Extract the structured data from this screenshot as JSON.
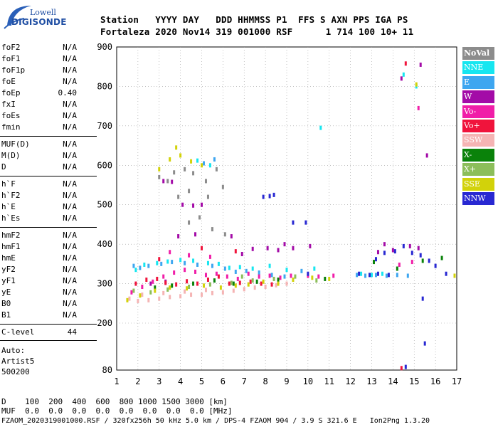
{
  "logo": {
    "line1": "Lowell",
    "line2": "DIGISONDE"
  },
  "header": {
    "row1": "Station   YYYY DAY   DDD HHMMSS P1  FFS S AXN PPS IGA PS",
    "row2": "Fortaleza 2020 Nov14 319 001000 RSF      1 714 100 10+ 11"
  },
  "params_group1": [
    {
      "name": "foF2",
      "value": "N/A"
    },
    {
      "name": "foF1",
      "value": "N/A"
    },
    {
      "name": "foF1p",
      "value": "N/A"
    },
    {
      "name": "foE",
      "value": "N/A"
    },
    {
      "name": "foEp",
      "value": "0.40"
    },
    {
      "name": "fxI",
      "value": "N/A"
    },
    {
      "name": "foEs",
      "value": "N/A"
    },
    {
      "name": "fmin",
      "value": "N/A"
    }
  ],
  "params_group2": [
    {
      "name": "MUF(D)",
      "value": "N/A"
    },
    {
      "name": "M(D)",
      "value": "N/A"
    },
    {
      "name": "D",
      "value": "N/A"
    }
  ],
  "params_group3": [
    {
      "name": "h`F",
      "value": "N/A"
    },
    {
      "name": "h`F2",
      "value": "N/A"
    },
    {
      "name": "h`E",
      "value": "N/A"
    },
    {
      "name": "h`Es",
      "value": "N/A"
    }
  ],
  "params_group4": [
    {
      "name": "hmF2",
      "value": "N/A"
    },
    {
      "name": "hmF1",
      "value": "N/A"
    },
    {
      "name": "hmE",
      "value": "N/A"
    },
    {
      "name": "yF2",
      "value": "N/A"
    },
    {
      "name": "yF1",
      "value": "N/A"
    },
    {
      "name": "yE",
      "value": "N/A"
    },
    {
      "name": "B0",
      "value": "N/A"
    },
    {
      "name": "B1",
      "value": "N/A"
    }
  ],
  "clevel": {
    "name": "C-level",
    "value": "44"
  },
  "auto": {
    "line1": "Auto:",
    "line2": "Artist5",
    "line3": "500200"
  },
  "legend": [
    {
      "label": "NoVal",
      "color": "#8c8c8c"
    },
    {
      "label": "NNE",
      "color": "#17e6f0"
    },
    {
      "label": "E",
      "color": "#3ea6f0"
    },
    {
      "label": "W",
      "color": "#a30ba7"
    },
    {
      "label": "Vo-",
      "color": "#f01ea8"
    },
    {
      "label": "Vo+",
      "color": "#f0143c"
    },
    {
      "label": "SSW",
      "color": "#f5b4b4"
    },
    {
      "label": "X-",
      "color": "#0a820a"
    },
    {
      "label": "X+",
      "color": "#8cbe5a"
    },
    {
      "label": "SSE",
      "color": "#d2d20a"
    },
    {
      "label": "NNW",
      "color": "#2828d2"
    }
  ],
  "chart_data": {
    "type": "scatter",
    "title": "",
    "xlabel": "",
    "ylabel": "",
    "xlim": [
      1,
      17
    ],
    "ylim": [
      80,
      900
    ],
    "xticks": [
      "1",
      "2",
      "3",
      "4",
      "5",
      "6",
      "7",
      "8",
      "9",
      "10",
      "11",
      "12",
      "13",
      "14",
      "15",
      "16",
      "17"
    ],
    "yticks": [
      {
        "label": "900",
        "value": 900
      },
      {
        "label": "800",
        "value": 800
      },
      {
        "label": "700",
        "value": 700
      },
      {
        "label": "600",
        "value": 600
      },
      {
        "label": "500",
        "value": 500
      },
      {
        "label": "400",
        "value": 400
      },
      {
        "label": "300",
        "value": 300
      },
      {
        "label": "200",
        "value": 200
      },
      {
        "label": "80",
        "value": 80
      }
    ],
    "grid": "dotted",
    "legend_position": "right",
    "series": [
      {
        "name": "NNE",
        "color": "#17e6f0",
        "points": [
          [
            1.9,
            335
          ],
          [
            2.3,
            348
          ],
          [
            2.9,
            352
          ],
          [
            3.4,
            356
          ],
          [
            4.0,
            360
          ],
          [
            4.6,
            358
          ],
          [
            5.3,
            352
          ],
          [
            5.8,
            350
          ],
          [
            6.3,
            340
          ],
          [
            6.8,
            342
          ],
          [
            7.4,
            338
          ],
          [
            8.2,
            345
          ],
          [
            9.0,
            335
          ],
          [
            10.3,
            338
          ],
          [
            12.5,
            325
          ],
          [
            13.0,
            322
          ],
          [
            13.5,
            325
          ],
          [
            10.6,
            695
          ],
          [
            14.5,
            830
          ],
          [
            15.1,
            800
          ],
          [
            4.8,
            612
          ],
          [
            5.4,
            600
          ]
        ]
      },
      {
        "name": "E",
        "color": "#3ea6f0",
        "points": [
          [
            1.8,
            345
          ],
          [
            2.1,
            340
          ],
          [
            2.5,
            345
          ],
          [
            3.1,
            350
          ],
          [
            3.6,
            355
          ],
          [
            4.2,
            352
          ],
          [
            4.8,
            348
          ],
          [
            5.5,
            345
          ],
          [
            6.1,
            338
          ],
          [
            6.6,
            330
          ],
          [
            7.1,
            332
          ],
          [
            7.7,
            328
          ],
          [
            8.3,
            322
          ],
          [
            8.9,
            318
          ],
          [
            12.3,
            322
          ],
          [
            12.7,
            320
          ],
          [
            13.2,
            322
          ],
          [
            13.7,
            320
          ],
          [
            14.2,
            322
          ],
          [
            14.7,
            320
          ],
          [
            5.1,
            605
          ],
          [
            5.6,
            615
          ],
          [
            9.7,
            332
          ]
        ]
      },
      {
        "name": "W",
        "color": "#a30ba7",
        "points": [
          [
            3.2,
            560
          ],
          [
            3.6,
            558
          ],
          [
            4.1,
            500
          ],
          [
            4.6,
            498
          ],
          [
            5.0,
            500
          ],
          [
            3.9,
            420
          ],
          [
            4.7,
            425
          ],
          [
            6.4,
            420
          ],
          [
            7.4,
            388
          ],
          [
            8.1,
            390
          ],
          [
            8.6,
            385
          ],
          [
            9.3,
            390
          ],
          [
            10.1,
            395
          ],
          [
            13.3,
            380
          ],
          [
            14.0,
            385
          ],
          [
            14.8,
            395
          ],
          [
            15.2,
            390
          ],
          [
            15.6,
            625
          ],
          [
            14.4,
            820
          ],
          [
            15.3,
            855
          ],
          [
            2.6,
            300
          ],
          [
            3.3,
            305
          ],
          [
            6.9,
            375
          ],
          [
            8.9,
            400
          ],
          [
            13.6,
            400
          ]
        ]
      },
      {
        "name": "Vo-",
        "color": "#f01ea8",
        "points": [
          [
            1.7,
            278
          ],
          [
            2.2,
            292
          ],
          [
            2.7,
            305
          ],
          [
            3.2,
            318
          ],
          [
            3.7,
            328
          ],
          [
            4.2,
            335
          ],
          [
            4.7,
            330
          ],
          [
            5.2,
            322
          ],
          [
            5.7,
            325
          ],
          [
            6.2,
            318
          ],
          [
            6.7,
            312
          ],
          [
            7.2,
            325
          ],
          [
            7.7,
            318
          ],
          [
            8.2,
            320
          ],
          [
            8.7,
            315
          ],
          [
            9.2,
            320
          ],
          [
            10.0,
            320
          ],
          [
            10.5,
            318
          ],
          [
            11.2,
            320
          ],
          [
            14.3,
            348
          ],
          [
            14.9,
            355
          ],
          [
            15.2,
            745
          ],
          [
            3.5,
            380
          ],
          [
            4.4,
            372
          ],
          [
            5.4,
            368
          ]
        ]
      },
      {
        "name": "Vo+",
        "color": "#f0143c",
        "points": [
          [
            1.9,
            300
          ],
          [
            2.4,
            310
          ],
          [
            2.9,
            312
          ],
          [
            3.3,
            302
          ],
          [
            3.8,
            298
          ],
          [
            4.3,
            306
          ],
          [
            4.8,
            300
          ],
          [
            5.3,
            310
          ],
          [
            5.8,
            318
          ],
          [
            6.3,
            300
          ],
          [
            6.8,
            302
          ],
          [
            7.3,
            305
          ],
          [
            7.8,
            300
          ],
          [
            8.3,
            298
          ],
          [
            14.4,
            85
          ],
          [
            14.6,
            858
          ],
          [
            5.0,
            390
          ],
          [
            6.6,
            382
          ],
          [
            3.0,
            362
          ]
        ]
      },
      {
        "name": "SSW",
        "color": "#f5b4b4",
        "points": [
          [
            1.6,
            262
          ],
          [
            2.0,
            256
          ],
          [
            2.5,
            258
          ],
          [
            3.0,
            262
          ],
          [
            3.5,
            266
          ],
          [
            4.0,
            268
          ],
          [
            4.5,
            272
          ],
          [
            5.0,
            272
          ],
          [
            5.5,
            276
          ],
          [
            6.0,
            278
          ],
          [
            6.5,
            282
          ],
          [
            7.0,
            286
          ],
          [
            7.5,
            290
          ],
          [
            8.0,
            292
          ],
          [
            8.5,
            296
          ],
          [
            9.0,
            300
          ],
          [
            2.2,
            272
          ],
          [
            3.2,
            276
          ],
          [
            4.2,
            280
          ],
          [
            5.2,
            284
          ]
        ]
      },
      {
        "name": "X-",
        "color": "#0a820a",
        "points": [
          [
            2.8,
            290
          ],
          [
            3.6,
            295
          ],
          [
            4.6,
            300
          ],
          [
            5.6,
            308
          ],
          [
            6.5,
            300
          ],
          [
            7.6,
            305
          ],
          [
            8.6,
            310
          ],
          [
            10.8,
            312
          ],
          [
            13.1,
            355
          ],
          [
            14.2,
            338
          ],
          [
            15.4,
            358
          ],
          [
            16.3,
            365
          ]
        ]
      },
      {
        "name": "X+",
        "color": "#8cbe5a",
        "points": [
          [
            1.8,
            282
          ],
          [
            2.6,
            278
          ],
          [
            3.4,
            285
          ],
          [
            4.4,
            292
          ],
          [
            5.4,
            298
          ],
          [
            6.4,
            302
          ],
          [
            7.4,
            308
          ],
          [
            8.4,
            312
          ],
          [
            9.4,
            318
          ],
          [
            10.4,
            308
          ],
          [
            6.9,
            318
          ]
        ]
      },
      {
        "name": "SSE",
        "color": "#d2d20a",
        "points": [
          [
            1.5,
            258
          ],
          [
            2.1,
            270
          ],
          [
            2.8,
            282
          ],
          [
            3.5,
            290
          ],
          [
            4.3,
            288
          ],
          [
            5.1,
            295
          ],
          [
            5.9,
            290
          ],
          [
            6.6,
            295
          ],
          [
            7.2,
            298
          ],
          [
            7.9,
            305
          ],
          [
            8.6,
            300
          ],
          [
            9.3,
            310
          ],
          [
            10.2,
            315
          ],
          [
            11.0,
            312
          ],
          [
            3.0,
            590
          ],
          [
            3.5,
            615
          ],
          [
            4.0,
            625
          ],
          [
            4.5,
            610
          ],
          [
            5.0,
            600
          ],
          [
            3.8,
            645
          ],
          [
            15.1,
            805
          ],
          [
            16.9,
            320
          ]
        ]
      },
      {
        "name": "NNW",
        "color": "#2828d2",
        "points": [
          [
            7.9,
            520
          ],
          [
            8.2,
            522
          ],
          [
            8.4,
            525
          ],
          [
            10.0,
            325
          ],
          [
            12.4,
            325
          ],
          [
            12.9,
            322
          ],
          [
            13.3,
            325
          ],
          [
            13.8,
            322
          ],
          [
            13.2,
            362
          ],
          [
            13.6,
            378
          ],
          [
            14.1,
            382
          ],
          [
            14.5,
            395
          ],
          [
            14.9,
            378
          ],
          [
            15.3,
            372
          ],
          [
            15.7,
            358
          ],
          [
            16.0,
            345
          ],
          [
            16.5,
            325
          ],
          [
            15.5,
            148
          ],
          [
            14.6,
            88
          ],
          [
            15.4,
            262
          ],
          [
            9.9,
            455
          ],
          [
            9.3,
            455
          ]
        ]
      },
      {
        "name": "NoVal",
        "color": "#8c8c8c",
        "points": [
          [
            3.0,
            570
          ],
          [
            3.4,
            560
          ],
          [
            3.7,
            582
          ],
          [
            4.2,
            590
          ],
          [
            4.6,
            580
          ],
          [
            5.2,
            560
          ],
          [
            5.7,
            590
          ],
          [
            3.9,
            520
          ],
          [
            4.4,
            535
          ],
          [
            5.3,
            520
          ],
          [
            6.0,
            545
          ],
          [
            4.4,
            455
          ],
          [
            4.9,
            468
          ],
          [
            5.5,
            438
          ],
          [
            6.1,
            425
          ]
        ]
      }
    ]
  },
  "footer": {
    "row1": "D    100  200  400  600  800 1000 1500 3000 [km]",
    "row2": "MUF  0.0  0.0  0.0  0.0  0.0  0.0  0.0  0.0 [MHz]",
    "row3": "FZAOM_2020319001000.RSF / 320fx256h 50 kHz 5.0 km / DPS-4 FZAOM 904 / 3.9 S 321.6 E   Ion2Png 1.3.20"
  }
}
